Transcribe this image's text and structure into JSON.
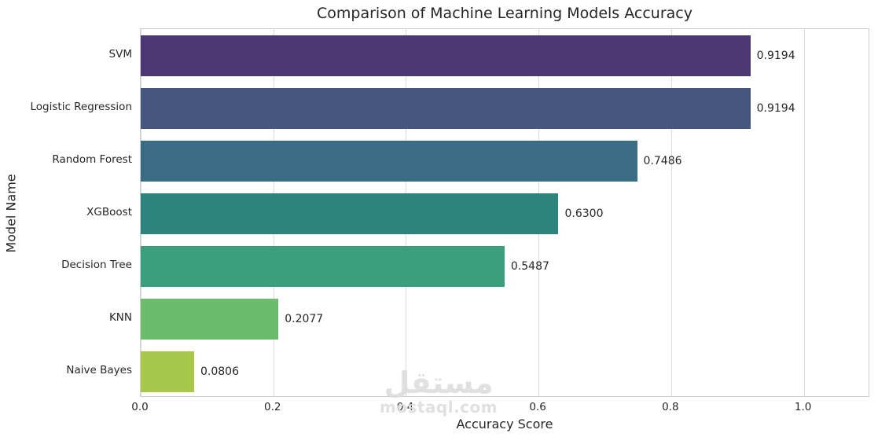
{
  "title": "Comparison of Machine Learning Models Accuracy",
  "xlabel": "Accuracy Score",
  "ylabel": "Model Name",
  "watermark": {
    "arabic": "مستقل",
    "latin": "mostaql.com"
  },
  "colors": {
    "text": "#262626",
    "grid": "#dcdcdc",
    "plot_border": "#d0d0d0",
    "background": "#ffffff",
    "watermark": "#dddddd"
  },
  "chart_data": {
    "type": "bar",
    "orientation": "horizontal",
    "title": "Comparison of Machine Learning Models Accuracy",
    "xlabel": "Accuracy Score",
    "ylabel": "Model Name",
    "categories": [
      "SVM",
      "Logistic Regression",
      "Random Forest",
      "XGBoost",
      "Decision Tree",
      "KNN",
      "Naive Bayes"
    ],
    "values": [
      0.9194,
      0.9194,
      0.7486,
      0.63,
      0.5487,
      0.2077,
      0.0806
    ],
    "value_labels": [
      "0.9194",
      "0.9194",
      "0.7486",
      "0.6300",
      "0.5487",
      "0.2077",
      "0.0806"
    ],
    "bar_colors": [
      "#4a3773",
      "#45567f",
      "#3a6d83",
      "#2d847e",
      "#3b9e7c",
      "#6cbc6e",
      "#a5c84a"
    ],
    "x_ticks": [
      "0.0",
      "0.2",
      "0.4",
      "0.6",
      "0.8",
      "1.0"
    ],
    "x_tick_values": [
      0.0,
      0.2,
      0.4,
      0.6,
      0.8,
      1.0
    ],
    "xlim": [
      0,
      1.1
    ],
    "grid": "vertical-only",
    "legend": "none",
    "palette": "viridis"
  }
}
